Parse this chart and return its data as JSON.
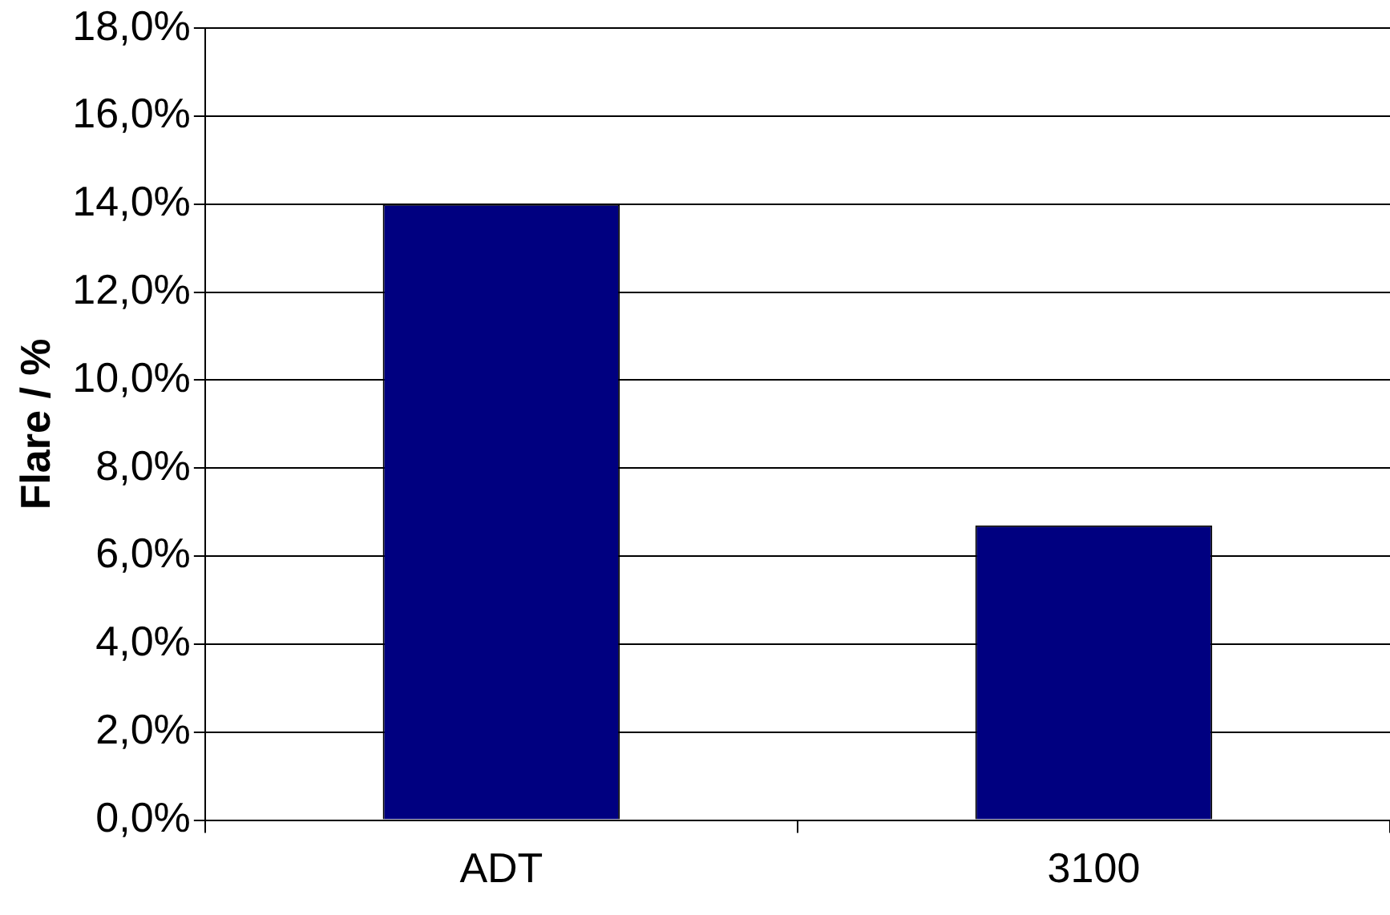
{
  "chart_data": {
    "type": "bar",
    "ylabel": "Flare / %",
    "categories": [
      "ADT",
      "3100"
    ],
    "values": [
      14.0,
      6.7
    ],
    "color": "#000080",
    "ylim": [
      0,
      18
    ],
    "yticks": [
      {
        "value": 0,
        "label": "0,0%"
      },
      {
        "value": 2,
        "label": "2,0%"
      },
      {
        "value": 4,
        "label": "4,0%"
      },
      {
        "value": 6,
        "label": "6,0%"
      },
      {
        "value": 8,
        "label": "8,0%"
      },
      {
        "value": 10,
        "label": "10,0%"
      },
      {
        "value": 12,
        "label": "12,0%"
      },
      {
        "value": 14,
        "label": "14,0%"
      },
      {
        "value": 16,
        "label": "16,0%"
      },
      {
        "value": 18,
        "label": "18,0%"
      }
    ],
    "grid": "y"
  }
}
